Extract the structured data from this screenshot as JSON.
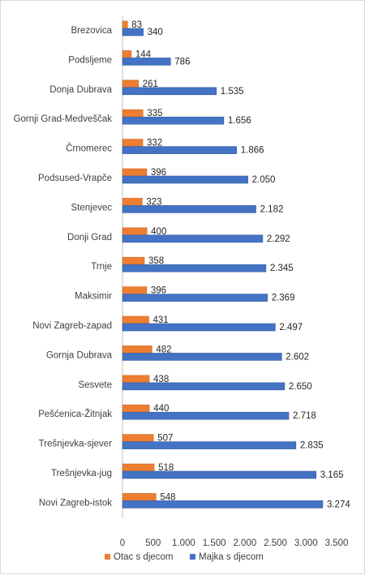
{
  "chart_data": {
    "type": "bar",
    "orientation": "horizontal",
    "categories": [
      "Brezovica",
      "Podsljeme",
      "Donja Dubrava",
      "Gornji Grad-Medveščak",
      "Črnomerec",
      "Podsused-Vrapče",
      "Stenjevec",
      "Donji Grad",
      "Trnje",
      "Maksimir",
      "Novi Zagreb-zapad",
      "Gornja Dubrava",
      "Sesvete",
      "Pešćenica-Žitnjak",
      "Trešnjevka-sjever",
      "Trešnjevka-jug",
      "Novi Zagreb-istok"
    ],
    "series": [
      {
        "name": "Otac s djecom",
        "color": "#ED7D31",
        "values": [
          83,
          144,
          261,
          335,
          332,
          396,
          323,
          400,
          358,
          396,
          431,
          482,
          438,
          440,
          507,
          518,
          548
        ],
        "labels": [
          "83",
          "144",
          "261",
          "335",
          "332",
          "396",
          "323",
          "400",
          "358",
          "396",
          "431",
          "482",
          "438",
          "440",
          "507",
          "518",
          "548"
        ]
      },
      {
        "name": "Majka s djecom",
        "color": "#4472C4",
        "values": [
          340,
          786,
          1535,
          1656,
          1866,
          2050,
          2182,
          2292,
          2345,
          2369,
          2497,
          2602,
          2650,
          2718,
          2835,
          3165,
          3274
        ],
        "labels": [
          "340",
          "786",
          "1.535",
          "1.656",
          "1.866",
          "2.050",
          "2.182",
          "2.292",
          "2.345",
          "2.369",
          "2.497",
          "2.602",
          "2.650",
          "2.718",
          "2.835",
          "3.165",
          "3.274"
        ]
      }
    ],
    "xlim": [
      0,
      3500
    ],
    "xticks": [
      0,
      500,
      1000,
      1500,
      2000,
      2500,
      3000,
      3500
    ],
    "xtick_labels": [
      "0",
      "500",
      "1.000",
      "1.500",
      "2.000",
      "2.500",
      "3.000",
      "3.500"
    ],
    "grid": false,
    "legend_position": "bottom"
  }
}
